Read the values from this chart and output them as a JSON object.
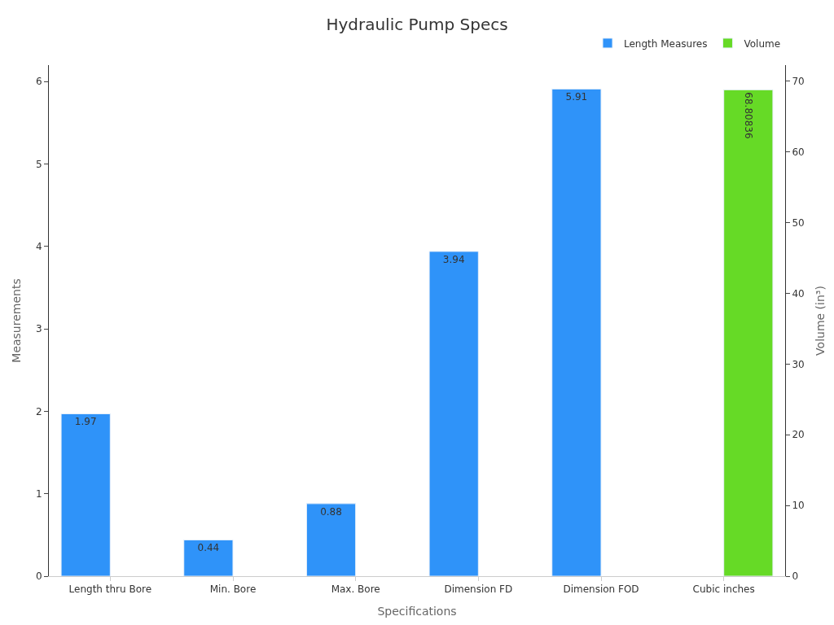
{
  "chart_data": {
    "type": "bar",
    "title": "Hydraulic Pump Specs",
    "xlabel": "Specifications",
    "ylabel": "Measurements",
    "y2label": "Volume (in³)",
    "categories": [
      "Length thru Bore",
      "Min. Bore",
      "Max. Bore",
      "Dimension FD",
      "Dimension FOD",
      "Cubic inches"
    ],
    "series": [
      {
        "name": "Length Measures",
        "color": "#2f93f9",
        "values": [
          1.97,
          0.44,
          0.88,
          3.94,
          5.91,
          null
        ]
      },
      {
        "name": "Volume",
        "color": "#66da26",
        "axis": "y2",
        "values": [
          null,
          null,
          null,
          null,
          null,
          68.80836
        ]
      }
    ],
    "ylim": [
      0,
      6.2
    ],
    "yticks": [
      0,
      1,
      2,
      3,
      4,
      5,
      6
    ],
    "y2lim": [
      0,
      72.3
    ],
    "y2ticks": [
      0,
      10,
      20,
      30,
      40,
      50,
      60,
      70
    ],
    "data_labels": true,
    "legend": "top right"
  }
}
